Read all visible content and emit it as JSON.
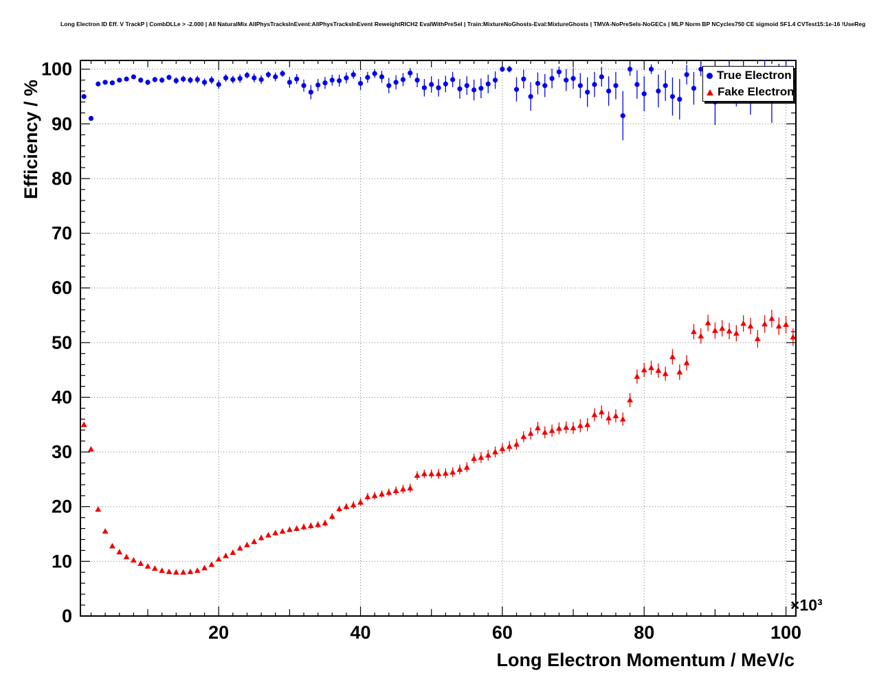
{
  "title": "Long Electron ID Eff. V TrackP | CombDLLe > -2.000 | All NaturalMix AllPhysTracksInEvent:AllPhysTracksInEvent ReweightRICH2 EvalWithPreSel | Train:MixtureNoGhosts-Eval:MixtureGhosts | TMVA-NoPreSels-NoGECs | MLP Norm BP NCycles750 CE sigmoid SF1.4 CVTest15:1e-16 !UseReg",
  "legend": {
    "entries": [
      {
        "label": "True Electron",
        "color": "#0000f0",
        "marker": "circle"
      },
      {
        "label": "Fake Electron",
        "color": "#f00000",
        "marker": "triangle-up"
      }
    ]
  },
  "chart_data": {
    "type": "scatter",
    "title": "Long Electron ID Eff. V TrackP | CombDLLe > -2.000",
    "xlabel": "Long Electron Momentum / MeV/c",
    "ylabel": "Efficiency / %",
    "x_scale_note": "×10³",
    "x_units_factor": 1000,
    "xlim": [
      0.5,
      101.4
    ],
    "ylim": [
      0,
      100
    ],
    "x_ticks": [
      20,
      40,
      60,
      80,
      100
    ],
    "y_ticks": [
      0,
      10,
      20,
      30,
      40,
      50,
      60,
      70,
      80,
      90,
      100
    ],
    "grid": true,
    "legend_position": "top-right",
    "series": [
      {
        "name": "True Electron",
        "marker": "circle",
        "color": "#0000f0",
        "x": [
          1,
          2,
          3,
          4,
          5,
          6,
          7,
          8,
          9,
          10,
          11,
          12,
          13,
          14,
          15,
          16,
          17,
          18,
          19,
          20,
          21,
          22,
          23,
          24,
          25,
          26,
          27,
          28,
          29,
          30,
          31,
          32,
          33,
          34,
          35,
          36,
          37,
          38,
          39,
          40,
          41,
          42,
          43,
          44,
          45,
          46,
          47,
          48,
          49,
          50,
          51,
          52,
          53,
          54,
          55,
          56,
          57,
          58,
          59,
          60,
          61,
          62,
          63,
          64,
          65,
          66,
          67,
          68,
          69,
          70,
          71,
          72,
          73,
          74,
          75,
          76,
          77,
          78,
          79,
          80,
          81,
          82,
          83,
          84,
          85,
          86,
          87,
          88,
          89,
          90,
          91,
          92,
          93,
          94,
          95,
          96,
          97,
          98,
          99,
          100,
          101
        ],
        "y": [
          95.0,
          91.0,
          97.3,
          97.6,
          97.5,
          98.0,
          98.2,
          98.6,
          98.0,
          97.6,
          98.1,
          98.0,
          98.5,
          97.9,
          98.2,
          98.0,
          98.1,
          97.6,
          98.0,
          97.2,
          98.4,
          98.1,
          98.3,
          98.9,
          98.4,
          98.1,
          99.0,
          98.6,
          99.2,
          97.6,
          98.2,
          97.0,
          95.8,
          97.1,
          97.5,
          98.0,
          97.9,
          98.4,
          99.0,
          97.4,
          98.5,
          99.2,
          98.6,
          97.0,
          97.6,
          98.1,
          99.3,
          98.0,
          96.6,
          97.2,
          96.6,
          97.3,
          98.1,
          96.4,
          97.0,
          96.2,
          96.5,
          97.3,
          98.0,
          100.0,
          100.0,
          96.3,
          98.2,
          95.0,
          97.4,
          97.0,
          98.3,
          99.5,
          98.0,
          98.3,
          97.0,
          95.8,
          97.2,
          98.6,
          96.0,
          97.0,
          91.5,
          100.0,
          97.2,
          95.5,
          100.0,
          96.0,
          97.0,
          95.0,
          94.5,
          99.0,
          96.5,
          100.0,
          97.5,
          94.0,
          98.0,
          100.0,
          96.5,
          100.0,
          95.5,
          98.0,
          100.0,
          94.5,
          98.5,
          100.0,
          97.5
        ],
        "yerr": [
          0.3,
          0.4,
          0.3,
          0.3,
          0.4,
          0.4,
          0.4,
          0.4,
          0.5,
          0.5,
          0.5,
          0.5,
          0.5,
          0.6,
          0.6,
          0.6,
          0.7,
          0.7,
          0.7,
          0.8,
          0.7,
          0.7,
          0.8,
          0.6,
          0.8,
          0.8,
          0.6,
          0.8,
          0.6,
          1.0,
          0.9,
          1.1,
          1.3,
          1.1,
          1.1,
          1.0,
          1.1,
          1.0,
          0.8,
          1.2,
          1.0,
          0.8,
          1.1,
          1.4,
          1.3,
          1.2,
          0.9,
          1.3,
          1.6,
          1.5,
          1.6,
          1.5,
          1.4,
          1.8,
          1.7,
          1.9,
          1.8,
          1.7,
          1.6,
          0.5,
          0.6,
          2.2,
          1.7,
          2.6,
          2.0,
          2.1,
          1.8,
          1.0,
          2.0,
          1.9,
          2.3,
          2.7,
          2.3,
          1.8,
          2.7,
          2.5,
          4.5,
          1.2,
          2.6,
          3.2,
          0.9,
          3.0,
          2.8,
          3.5,
          3.7,
          1.8,
          3.0,
          1.3,
          2.7,
          4.2,
          2.4,
          1.5,
          3.3,
          1.6,
          3.8,
          2.6,
          1.7,
          4.3,
          2.5,
          1.8,
          3.0
        ]
      },
      {
        "name": "Fake Electron",
        "marker": "triangle-up",
        "color": "#f00000",
        "x": [
          1,
          2,
          3,
          4,
          5,
          6,
          7,
          8,
          9,
          10,
          11,
          12,
          13,
          14,
          15,
          16,
          17,
          18,
          19,
          20,
          21,
          22,
          23,
          24,
          25,
          26,
          27,
          28,
          29,
          30,
          31,
          32,
          33,
          34,
          35,
          36,
          37,
          38,
          39,
          40,
          41,
          42,
          43,
          44,
          45,
          46,
          47,
          48,
          49,
          50,
          51,
          52,
          53,
          54,
          55,
          56,
          57,
          58,
          59,
          60,
          61,
          62,
          63,
          64,
          65,
          66,
          67,
          68,
          69,
          70,
          71,
          72,
          73,
          74,
          75,
          76,
          77,
          78,
          79,
          80,
          81,
          82,
          83,
          84,
          85,
          86,
          87,
          88,
          89,
          90,
          91,
          92,
          93,
          94,
          95,
          96,
          97,
          98,
          99,
          100,
          101
        ],
        "y": [
          35.0,
          30.5,
          19.5,
          15.5,
          12.8,
          11.7,
          10.8,
          10.2,
          9.6,
          9.1,
          8.7,
          8.3,
          8.1,
          8.0,
          8.0,
          8.1,
          8.3,
          8.8,
          9.4,
          10.4,
          11.0,
          11.6,
          12.4,
          13.0,
          13.6,
          14.3,
          14.8,
          15.2,
          15.5,
          15.8,
          16.0,
          16.3,
          16.5,
          16.7,
          17.0,
          18.2,
          19.6,
          20.0,
          20.3,
          20.8,
          21.8,
          22.0,
          22.3,
          22.6,
          22.9,
          23.2,
          23.4,
          25.7,
          26.0,
          26.0,
          26.0,
          26.1,
          26.3,
          26.8,
          27.2,
          28.8,
          29.0,
          29.4,
          30.0,
          30.6,
          31.0,
          31.4,
          32.8,
          33.4,
          34.4,
          33.6,
          33.9,
          34.3,
          34.5,
          34.4,
          34.8,
          35.0,
          36.8,
          37.3,
          36.2,
          36.6,
          36.0,
          39.5,
          43.8,
          45.0,
          45.4,
          44.9,
          44.3,
          47.4,
          44.6,
          46.3,
          52.0,
          51.2,
          53.6,
          52.2,
          52.6,
          52.1,
          51.7,
          53.5,
          53.0,
          50.7,
          53.4,
          54.4,
          53.0,
          53.3,
          51.0
        ],
        "yerr": [
          0.4,
          0.4,
          0.3,
          0.3,
          0.3,
          0.3,
          0.3,
          0.3,
          0.3,
          0.3,
          0.3,
          0.3,
          0.3,
          0.3,
          0.3,
          0.3,
          0.3,
          0.3,
          0.4,
          0.4,
          0.4,
          0.4,
          0.4,
          0.4,
          0.5,
          0.5,
          0.5,
          0.5,
          0.5,
          0.5,
          0.5,
          0.6,
          0.6,
          0.6,
          0.6,
          0.6,
          0.6,
          0.6,
          0.7,
          0.7,
          0.7,
          0.7,
          0.7,
          0.7,
          0.8,
          0.8,
          0.8,
          0.8,
          0.8,
          0.8,
          0.9,
          0.9,
          0.9,
          0.9,
          0.9,
          0.9,
          1.0,
          1.0,
          1.0,
          1.0,
          1.0,
          1.0,
          1.0,
          1.1,
          1.1,
          1.1,
          1.1,
          1.1,
          1.1,
          1.1,
          1.2,
          1.2,
          1.2,
          1.2,
          1.2,
          1.2,
          1.2,
          1.3,
          1.3,
          1.3,
          1.3,
          1.3,
          1.3,
          1.4,
          1.4,
          1.4,
          1.4,
          1.4,
          1.5,
          1.5,
          1.5,
          1.5,
          1.5,
          1.5,
          1.5,
          1.6,
          1.6,
          1.6,
          1.6,
          1.6,
          1.6
        ]
      }
    ]
  }
}
